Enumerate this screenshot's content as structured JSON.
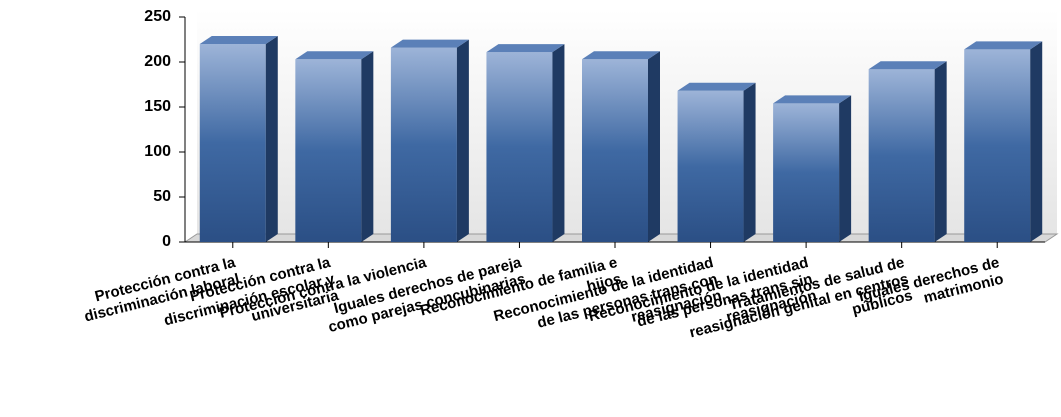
{
  "chart_data": {
    "type": "bar3d",
    "categories": [
      "Protección contra la discriminación laboral",
      "Protección contra la discriminación escolar y universitaria",
      "Protección contra la violencia",
      "Iguales derechos de pareja como parejas concubinarias",
      "Reconocimiento de familia e hijos",
      "Reconocimiento de la identidad de las personas trans con reasignación",
      "Reconocimiento de la identidad de las personas trans sin reasignación",
      "Tratamientos de salud de reasignación genital en centros públicos",
      "Iguales derechos de matrimonio"
    ],
    "values": [
      220,
      203,
      216,
      211,
      203,
      168,
      154,
      192,
      214
    ],
    "color": "#3f69a3",
    "ylim": [
      0,
      250
    ],
    "yticks": [
      0,
      50,
      100,
      150,
      200,
      250
    ]
  }
}
